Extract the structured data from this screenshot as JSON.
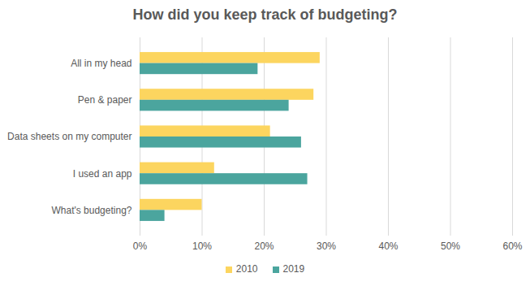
{
  "chart_data": {
    "type": "bar",
    "orientation": "horizontal",
    "title": "How did you keep track of budgeting?",
    "categories": [
      "All in my head",
      "Pen & paper",
      "Data sheets on my computer",
      "I used an app",
      "What's budgeting?"
    ],
    "series": [
      {
        "name": "2010",
        "color": "#FCD55F",
        "values": [
          29,
          28,
          21,
          12,
          10
        ]
      },
      {
        "name": "2019",
        "color": "#4BA59E",
        "values": [
          19,
          24,
          26,
          27,
          4
        ]
      }
    ],
    "xlim": [
      0,
      60
    ],
    "xticks": [
      {
        "value": 0,
        "label": "0%"
      },
      {
        "value": 10,
        "label": "10%"
      },
      {
        "value": 20,
        "label": "20%"
      },
      {
        "value": 30,
        "label": "30%"
      },
      {
        "value": 40,
        "label": "40%"
      },
      {
        "value": 50,
        "label": "50%"
      },
      {
        "value": 60,
        "label": "60%"
      }
    ],
    "grid": true,
    "legend": "bottom"
  }
}
